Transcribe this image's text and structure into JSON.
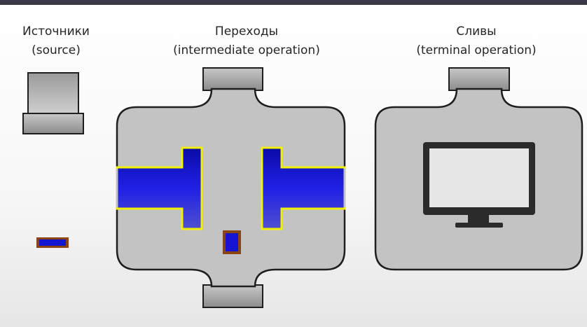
{
  "source": {
    "title": "Источники",
    "subtitle": "(source)"
  },
  "intermediate": {
    "title": "Переходы",
    "subtitle": "(intermediate operation)"
  },
  "terminal": {
    "title": "Сливы",
    "subtitle": "(terminal operation)"
  },
  "colors": {
    "body_fill": "#c3c3c3",
    "outline": "#1e1e1e",
    "pipe_fill": "#1414d2",
    "pipe_border": "#f0f000",
    "element_border": "#8b4513",
    "monitor_frame": "#2b2b2b",
    "monitor_screen": "#e6e6e6"
  }
}
